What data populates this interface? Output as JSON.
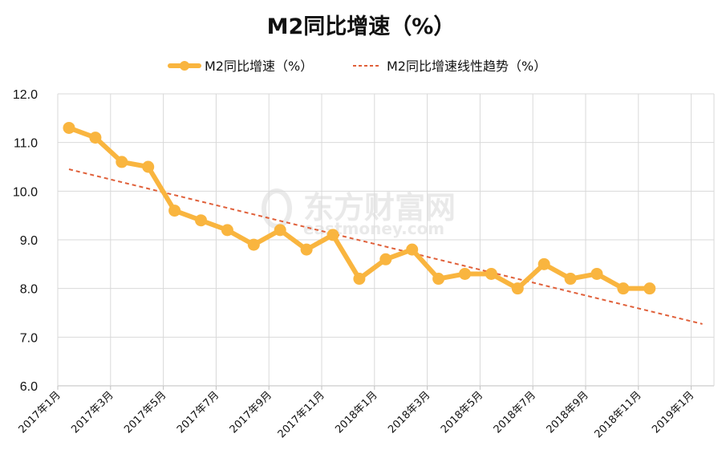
{
  "chart_data": {
    "type": "line",
    "title": "M2同比增速（%）",
    "xlabel": "",
    "ylabel": "",
    "ylim": [
      6.0,
      12.0
    ],
    "yticks": [
      "6.0",
      "7.0",
      "8.0",
      "9.0",
      "10.0",
      "11.0",
      "12.0"
    ],
    "xticks": [
      "2017年1月",
      "2017年3月",
      "2017年5月",
      "2017年7月",
      "2017年9月",
      "2017年11月",
      "2018年1月",
      "2018年3月",
      "2018年5月",
      "2018年7月",
      "2018年9月",
      "2018年11月",
      "2019年1月"
    ],
    "grid": true,
    "legend_position": "top",
    "series": [
      {
        "name": "M2同比增速（%）",
        "color": "#F9B53F",
        "style": "solid-marker",
        "values": [
          11.3,
          11.1,
          10.6,
          10.5,
          9.6,
          9.4,
          9.2,
          8.9,
          9.2,
          8.8,
          9.1,
          8.2,
          8.6,
          8.8,
          8.2,
          8.3,
          8.3,
          8.0,
          8.5,
          8.2,
          8.3,
          8.0,
          8.0
        ]
      },
      {
        "name": "M2同比增速线性趋势（%）",
        "color": "#E0603A",
        "style": "dashed",
        "start": 10.45,
        "end": 7.27,
        "span_months": 24
      }
    ]
  },
  "watermark": {
    "cn": "东方财富网",
    "en": "eastmoney.com"
  },
  "colors": {
    "grid": "#d9d9d9",
    "axis": "#bfbfbf"
  }
}
